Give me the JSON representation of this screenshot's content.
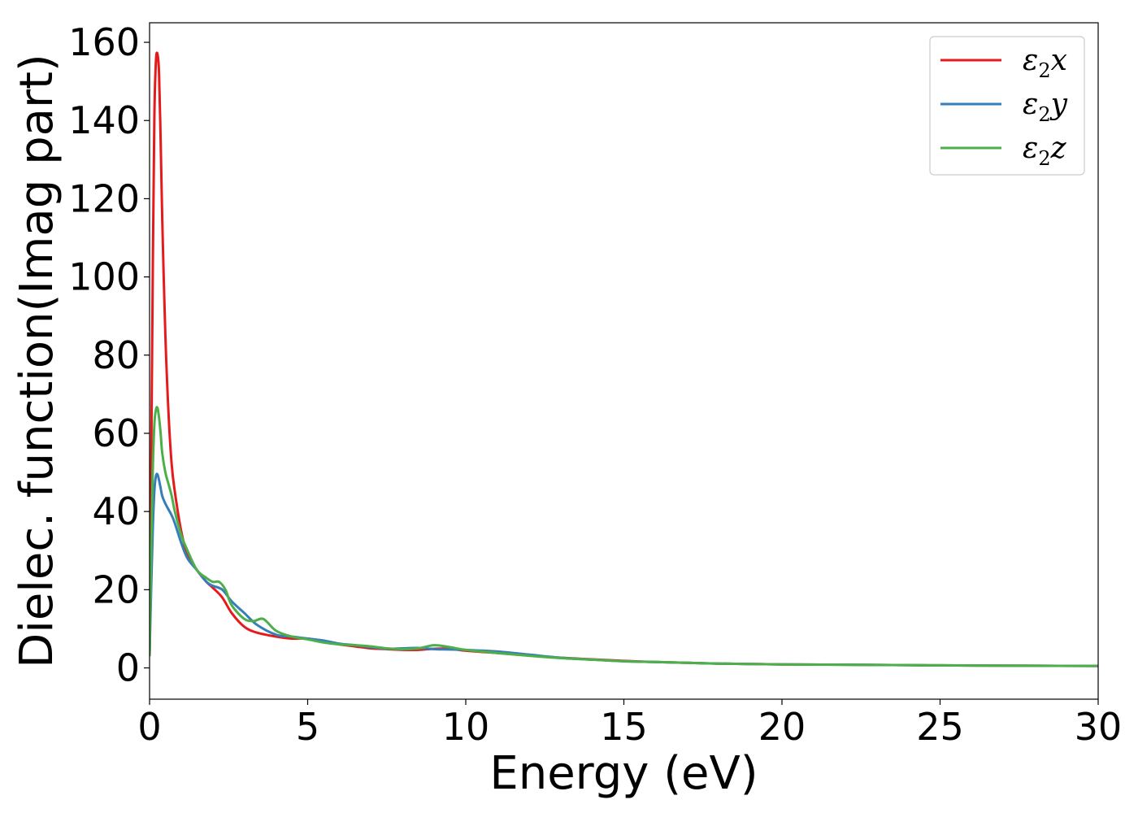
{
  "chart_data": {
    "type": "line",
    "title": "",
    "xlabel": "Energy (eV)",
    "ylabel": "Dielec. function(Imag part)",
    "xlim": [
      0,
      30
    ],
    "ylim": [
      -8,
      165
    ],
    "xticks": [
      0,
      5,
      10,
      15,
      20,
      25,
      30
    ],
    "xtick_labels": [
      "0",
      "5",
      "10",
      "15",
      "20",
      "25",
      "30"
    ],
    "yticks": [
      0,
      20,
      40,
      60,
      80,
      100,
      120,
      140,
      160
    ],
    "ytick_labels": [
      "0",
      "20",
      "40",
      "60",
      "80",
      "100",
      "120",
      "140",
      "160"
    ],
    "grid": false,
    "legend": "top-right",
    "series": [
      {
        "name": "ε₂x",
        "label_base": "ε",
        "label_sub": "2",
        "label_tail": "x",
        "color": "#e41a1c",
        "x": [
          0,
          0.05,
          0.1,
          0.15,
          0.2,
          0.25,
          0.3,
          0.35,
          0.4,
          0.5,
          0.6,
          0.7,
          0.8,
          1.0,
          1.2,
          1.5,
          1.8,
          2.0,
          2.3,
          2.6,
          3.0,
          3.4,
          4.0,
          4.5,
          5.0,
          5.5,
          6.0,
          6.5,
          7.0,
          7.5,
          8.0,
          8.5,
          9.0,
          9.5,
          10,
          11,
          12,
          13,
          14,
          15,
          16,
          17,
          18,
          19,
          20,
          22,
          24,
          26,
          28,
          30
        ],
        "y": [
          3,
          50,
          100,
          140,
          155,
          157,
          152,
          135,
          115,
          85,
          65,
          52,
          45,
          35,
          29,
          25,
          22,
          20.5,
          18,
          14,
          10.5,
          9,
          8,
          7.5,
          7.5,
          6.8,
          6,
          5.5,
          5,
          4.8,
          4.6,
          4.6,
          4.9,
          4.9,
          4.4,
          3.8,
          3.2,
          2.6,
          2.2,
          1.8,
          1.5,
          1.3,
          1.1,
          1.0,
          0.9,
          0.8,
          0.7,
          0.6,
          0.55,
          0.5
        ]
      },
      {
        "name": "ε₂y",
        "label_base": "ε",
        "label_sub": "2",
        "label_tail": "y",
        "color": "#377eb8",
        "x": [
          0,
          0.05,
          0.1,
          0.15,
          0.2,
          0.25,
          0.3,
          0.35,
          0.4,
          0.5,
          0.6,
          0.7,
          0.8,
          1.0,
          1.2,
          1.5,
          1.8,
          2.0,
          2.3,
          2.6,
          3.0,
          3.4,
          4.0,
          4.5,
          5.0,
          5.5,
          6.0,
          6.5,
          7.0,
          7.5,
          8.0,
          8.5,
          9.0,
          9.5,
          10,
          11,
          12,
          13,
          14,
          15,
          16,
          17,
          18,
          19,
          20,
          22,
          24,
          26,
          28,
          30
        ],
        "y": [
          3,
          20,
          35,
          45,
          49,
          49.5,
          48,
          46,
          44,
          42,
          40.5,
          39,
          37,
          32,
          28,
          25,
          22,
          21,
          20,
          17,
          14,
          11,
          8.5,
          8,
          7.5,
          7,
          6.2,
          5.8,
          5.3,
          4.9,
          5,
          5.1,
          4.8,
          4.7,
          4.6,
          4.2,
          3.4,
          2.6,
          2.1,
          1.7,
          1.5,
          1.3,
          1.1,
          1.0,
          0.9,
          0.8,
          0.7,
          0.6,
          0.55,
          0.5
        ]
      },
      {
        "name": "ε₂z",
        "label_base": "ε",
        "label_sub": "2",
        "label_tail": "z",
        "color": "#4daf4a",
        "x": [
          0,
          0.05,
          0.1,
          0.15,
          0.2,
          0.25,
          0.3,
          0.35,
          0.4,
          0.5,
          0.6,
          0.7,
          0.8,
          1.0,
          1.2,
          1.5,
          1.8,
          2.0,
          2.2,
          2.4,
          2.6,
          3.0,
          3.3,
          3.6,
          4.0,
          4.5,
          5.0,
          5.5,
          6.0,
          6.5,
          7.0,
          7.5,
          8.0,
          8.5,
          9.0,
          9.5,
          10,
          11,
          12,
          13,
          14,
          15,
          16,
          17,
          18,
          19,
          20,
          22,
          24,
          26,
          28,
          30
        ],
        "y": [
          3,
          30,
          50,
          62,
          66,
          66.5,
          64,
          60,
          55,
          50,
          47,
          44,
          40,
          34,
          30,
          25,
          23,
          22,
          22,
          20,
          16,
          12.5,
          12,
          12.5,
          9.5,
          8,
          7.3,
          6.5,
          6,
          5.8,
          5.5,
          5,
          4.8,
          5,
          5.8,
          5.3,
          4.6,
          3.8,
          3.1,
          2.5,
          2.1,
          1.7,
          1.5,
          1.3,
          1.1,
          1.0,
          0.9,
          0.8,
          0.7,
          0.6,
          0.55,
          0.5
        ]
      }
    ]
  }
}
